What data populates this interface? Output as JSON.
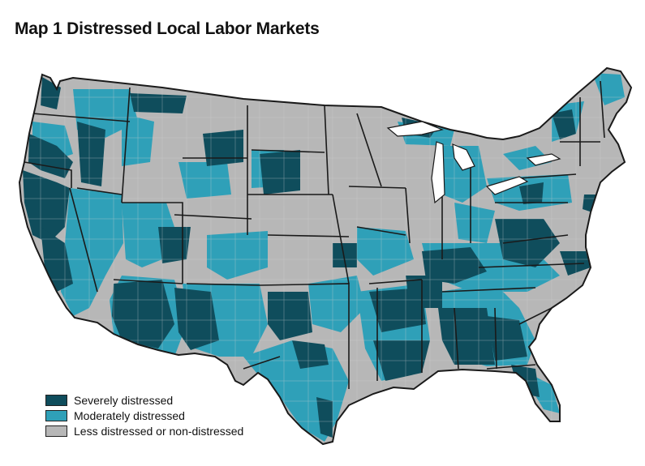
{
  "title": "Map 1  Distressed Local Labor Markets",
  "colors": {
    "severe": "#0f4d5c",
    "moderate": "#2fa0b8",
    "less": "#b7b7b7",
    "border": "#1a1a1a"
  },
  "legend": [
    {
      "label": "Severely distressed",
      "color": "#0f4d5c"
    },
    {
      "label": "Moderately distressed",
      "color": "#2fa0b8"
    },
    {
      "label": "Less distressed or non-distressed",
      "color": "#b7b7b7"
    }
  ]
}
